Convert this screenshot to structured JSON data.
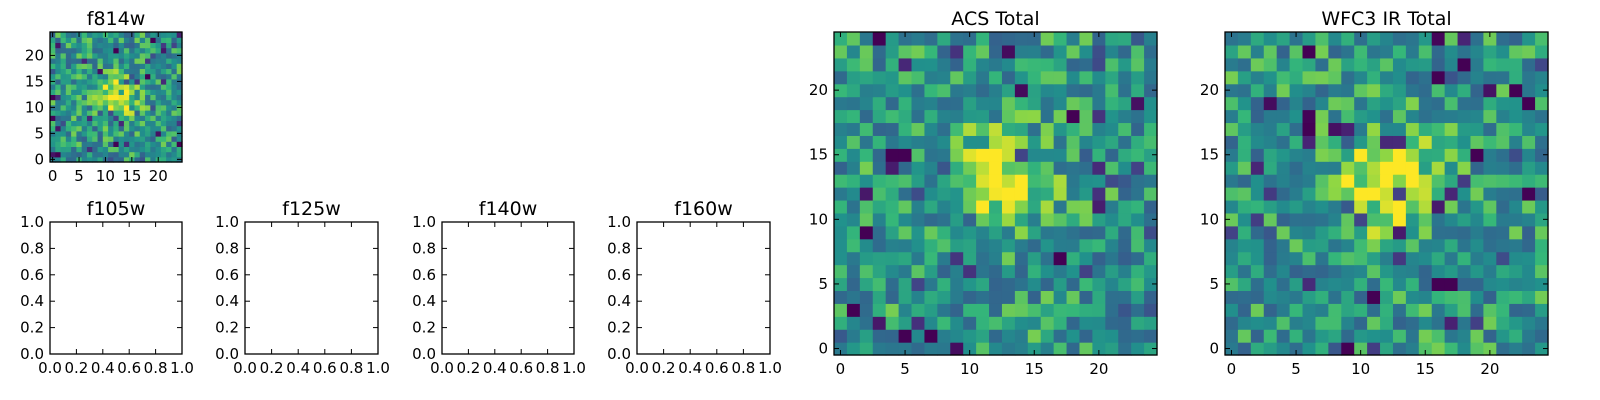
{
  "chart_data": [
    {
      "type": "heatmap",
      "title": "f814w",
      "colormap": "viridis",
      "grid_size": [
        25,
        25
      ],
      "xlim": [
        -0.5,
        24.5
      ],
      "ylim": [
        -0.5,
        24.5
      ],
      "xticks": [
        "0",
        "5",
        "10",
        "15",
        "20"
      ],
      "yticks": [
        "0",
        "5",
        "10",
        "15",
        "20"
      ],
      "source": {
        "x": 12.5,
        "y": 12.5
      },
      "noise_seed": 11
    },
    {
      "type": "empty",
      "title": "f105w",
      "xlim": [
        0,
        1
      ],
      "ylim": [
        0,
        1
      ],
      "xticks": [
        "0.0",
        "0.2",
        "0.4",
        "0.6",
        "0.8",
        "1.0"
      ],
      "yticks": [
        "0.0",
        "0.2",
        "0.4",
        "0.6",
        "0.8",
        "1.0"
      ]
    },
    {
      "type": "empty",
      "title": "f125w",
      "xlim": [
        0,
        1
      ],
      "ylim": [
        0,
        1
      ],
      "xticks": [
        "0.0",
        "0.2",
        "0.4",
        "0.6",
        "0.8",
        "1.0"
      ],
      "yticks": [
        "0.0",
        "0.2",
        "0.4",
        "0.6",
        "0.8",
        "1.0"
      ]
    },
    {
      "type": "empty",
      "title": "f140w",
      "xlim": [
        0,
        1
      ],
      "ylim": [
        0,
        1
      ],
      "xticks": [
        "0.0",
        "0.2",
        "0.4",
        "0.6",
        "0.8",
        "1.0"
      ],
      "yticks": [
        "0.0",
        "0.2",
        "0.4",
        "0.6",
        "0.8",
        "1.0"
      ]
    },
    {
      "type": "empty",
      "title": "f160w",
      "xlim": [
        0,
        1
      ],
      "ylim": [
        0,
        1
      ],
      "xticks": [
        "0.0",
        "0.2",
        "0.4",
        "0.6",
        "0.8",
        "1.0"
      ],
      "yticks": [
        "0.0",
        "0.2",
        "0.4",
        "0.6",
        "0.8",
        "1.0"
      ]
    },
    {
      "type": "heatmap",
      "title": "ACS Total",
      "colormap": "viridis",
      "grid_size": [
        25,
        25
      ],
      "xlim": [
        -0.5,
        24.5
      ],
      "ylim": [
        -0.5,
        24.5
      ],
      "xticks": [
        "0",
        "5",
        "10",
        "15",
        "20"
      ],
      "yticks": [
        "0",
        "5",
        "10",
        "15",
        "20"
      ],
      "source": {
        "x": 12.0,
        "y": 13.0
      },
      "noise_seed": 23
    },
    {
      "type": "heatmap",
      "title": "WFC3 IR Total",
      "colormap": "viridis",
      "grid_size": [
        25,
        25
      ],
      "xlim": [
        -0.5,
        24.5
      ],
      "ylim": [
        -0.5,
        24.5
      ],
      "xticks": [
        "0",
        "5",
        "10",
        "15",
        "20"
      ],
      "yticks": [
        "0",
        "5",
        "10",
        "15",
        "20"
      ],
      "source": {
        "x": 12.0,
        "y": 13.0
      },
      "noise_seed": 47
    }
  ]
}
